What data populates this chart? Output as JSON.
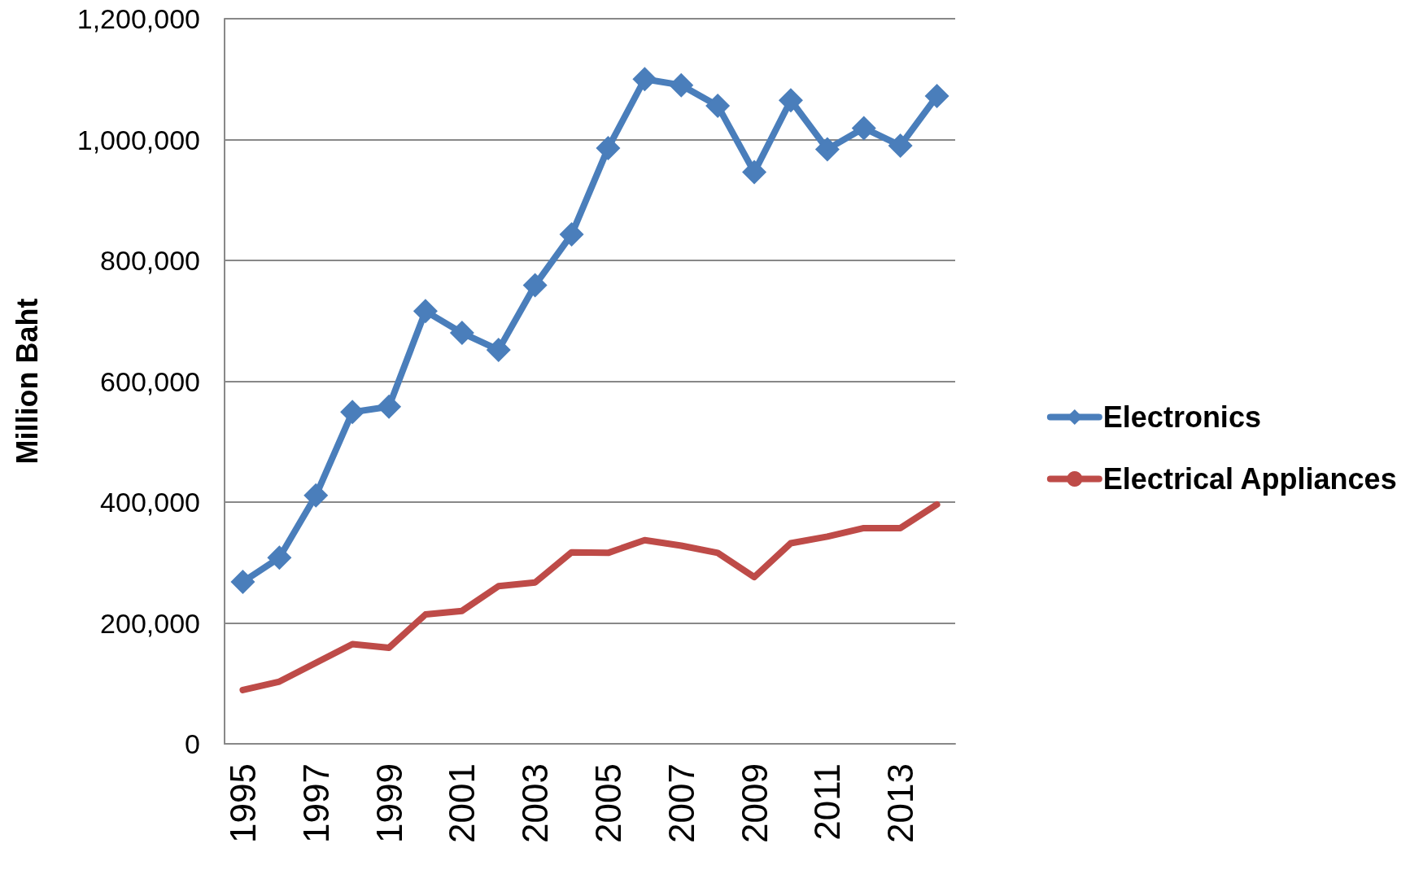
{
  "chart_data": {
    "type": "line",
    "ylabel": "Million Baht",
    "categories": [
      "1995",
      null,
      "1997",
      null,
      "1999",
      null,
      "2001",
      null,
      "2003",
      null,
      "2005",
      null,
      "2007",
      null,
      "2009",
      null,
      "2011",
      null,
      "2013",
      null
    ],
    "series": [
      {
        "name": "Electronics",
        "color": "#4a7ebb",
        "marker": "diamond",
        "values": [
          268000,
          308000,
          411000,
          549000,
          558000,
          716000,
          680000,
          652000,
          759000,
          843000,
          986000,
          1100000,
          1090000,
          1056000,
          946000,
          1065000,
          984000,
          1019000,
          990000,
          1072000
        ]
      },
      {
        "name": "Electrical Appliances",
        "color": "#be4b48",
        "marker": "none",
        "values": [
          89000,
          103000,
          134000,
          165000,
          159000,
          214000,
          220000,
          261000,
          267000,
          317000,
          316000,
          337000,
          328000,
          316000,
          276000,
          332000,
          343000,
          357000,
          357000,
          396000
        ]
      }
    ],
    "ylim": [
      0,
      1200000
    ],
    "yticks": [
      0,
      {
        "value": 200000,
        "label": "200,000"
      },
      {
        "value": 400000,
        "label": "400,000"
      },
      {
        "value": 600000,
        "label": "600,000"
      },
      {
        "value": 800000,
        "label": "800,000"
      },
      {
        "value": 1000000,
        "label": "1,000,000"
      },
      {
        "value": 1200000,
        "label": "1,200,000"
      }
    ],
    "grid": "y",
    "legend": "right"
  }
}
